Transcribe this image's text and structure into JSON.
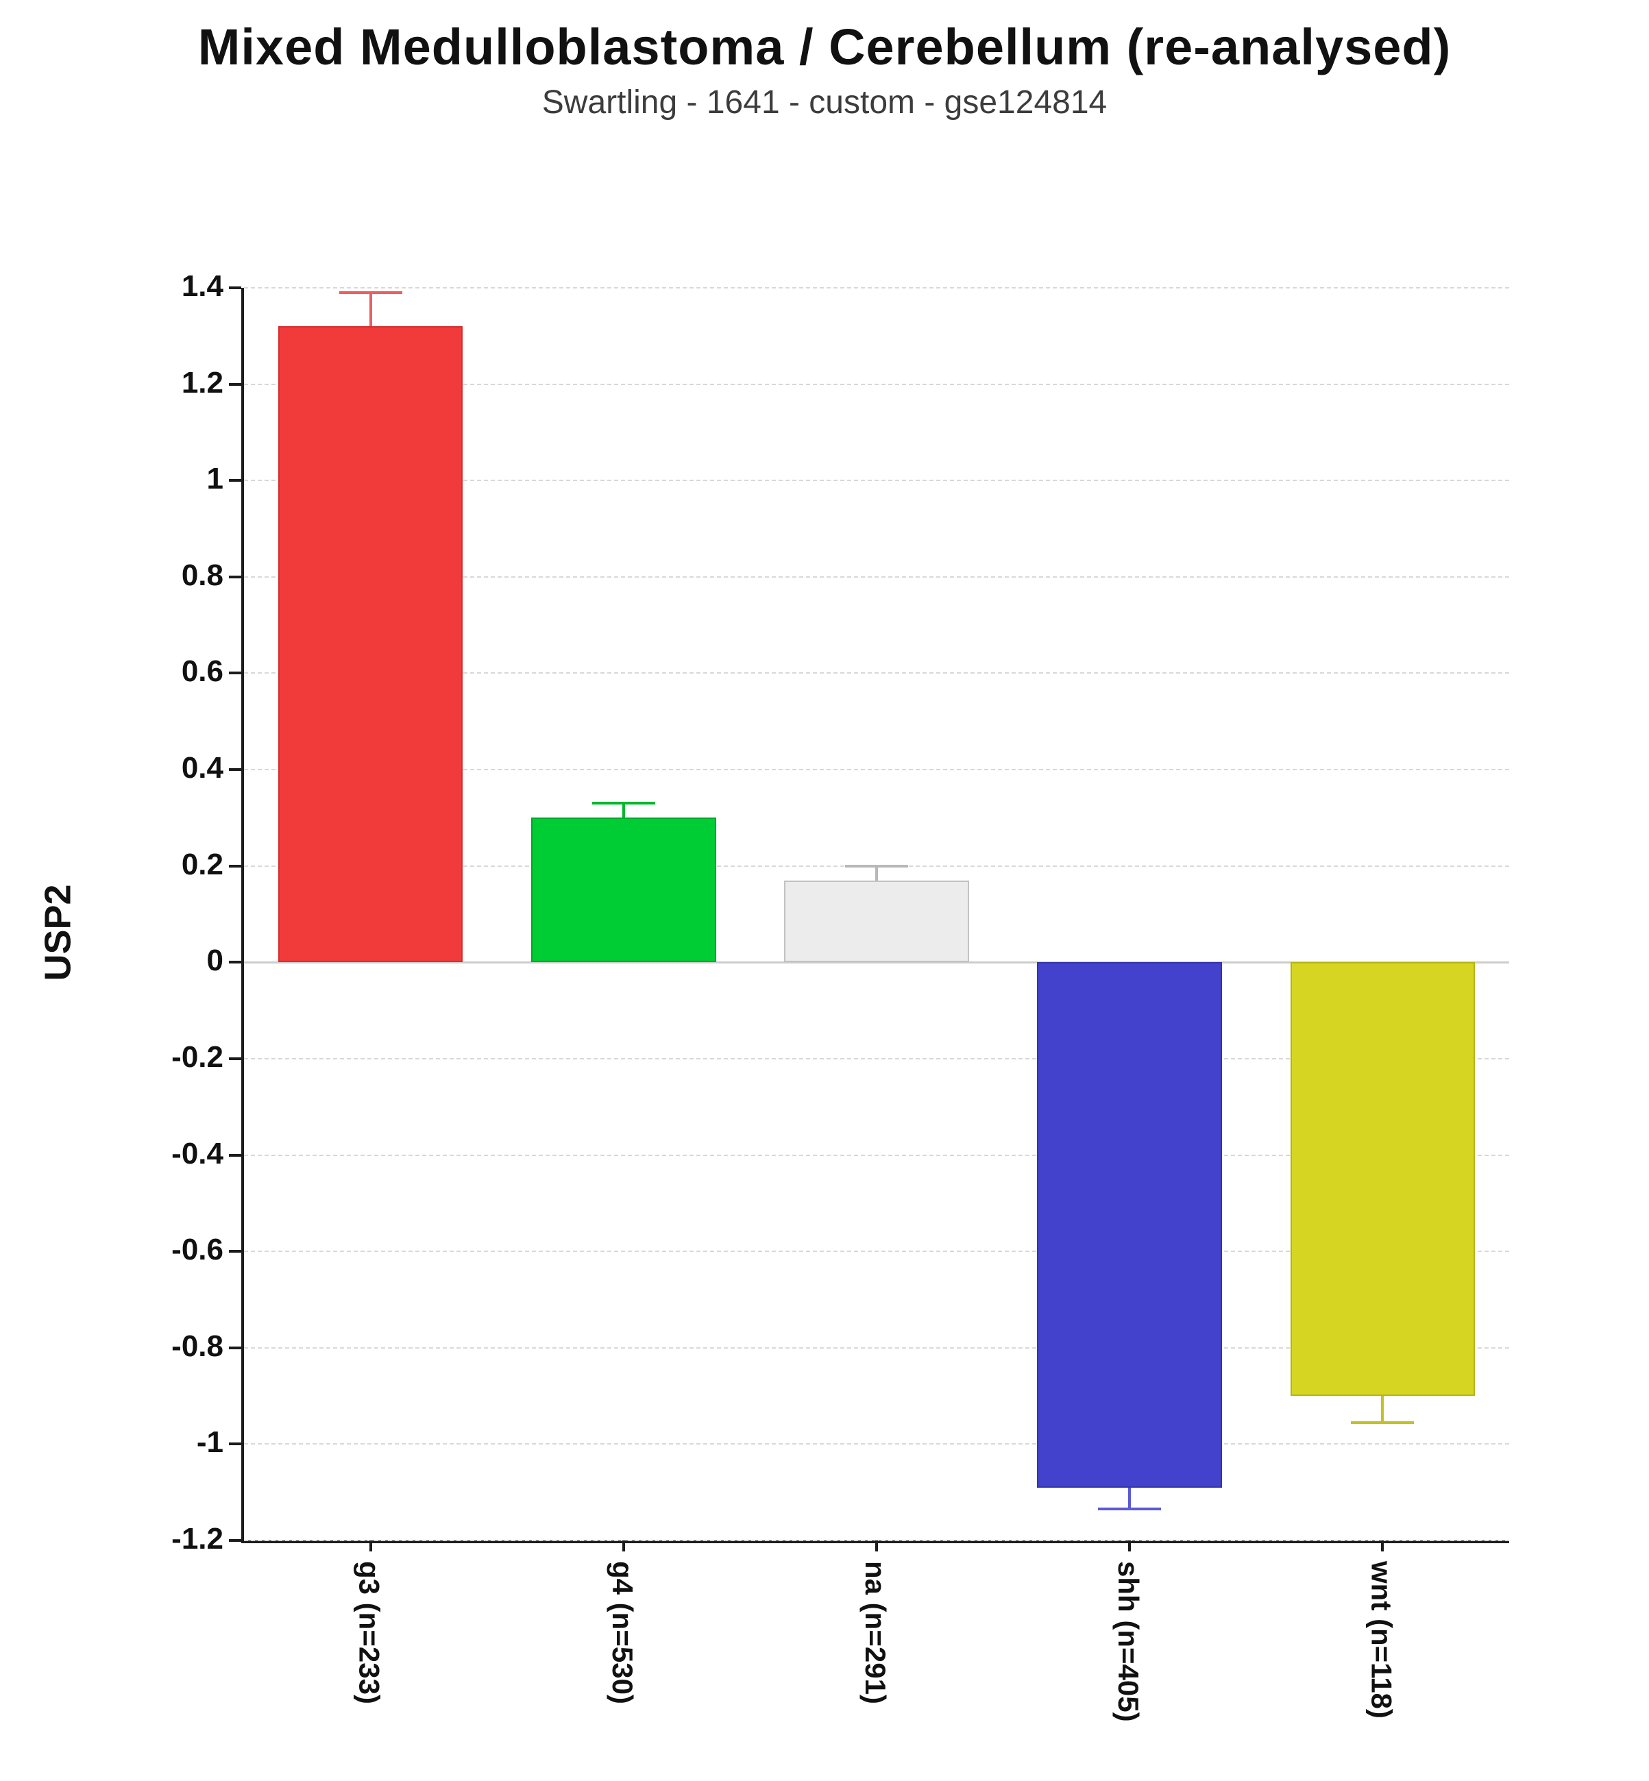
{
  "chart_data": {
    "type": "bar",
    "title": "Mixed Medulloblastoma / Cerebellum (re-analysed)",
    "subtitle": "Swartling - 1641 - custom - gse124814",
    "ylabel": "USP2",
    "categories": [
      "g3 (n=233)",
      "g4 (n=530)",
      "na (n=291)",
      "shh (n=405)",
      "wnt (n=118)"
    ],
    "values": [
      1.32,
      0.3,
      0.17,
      -1.09,
      -0.9
    ],
    "errors": [
      0.07,
      0.03,
      0.03,
      0.045,
      0.055
    ],
    "bar_colors": [
      "#f13b3b",
      "#00cc33",
      "#ececec",
      "#4242cc",
      "#d6d622"
    ],
    "bar_border_colors": [
      "#d42f2f",
      "#00a82a",
      "#c2c2c2",
      "#3434ad",
      "#b4b418"
    ],
    "error_colors": [
      "#e96060",
      "#00b82e",
      "#b8b8b8",
      "#5a5ad6",
      "#c2c226"
    ],
    "ylim": [
      -1.2,
      1.4
    ],
    "yticks": [
      "1.4",
      "1.2",
      "1",
      "0.8",
      "0.6",
      "0.4",
      "0.2",
      "0",
      "-0.2",
      "-0.4",
      "-0.6",
      "-0.8",
      "-1",
      "-1.2"
    ],
    "grid": true,
    "grid_style": "dashed",
    "legend": "none"
  }
}
